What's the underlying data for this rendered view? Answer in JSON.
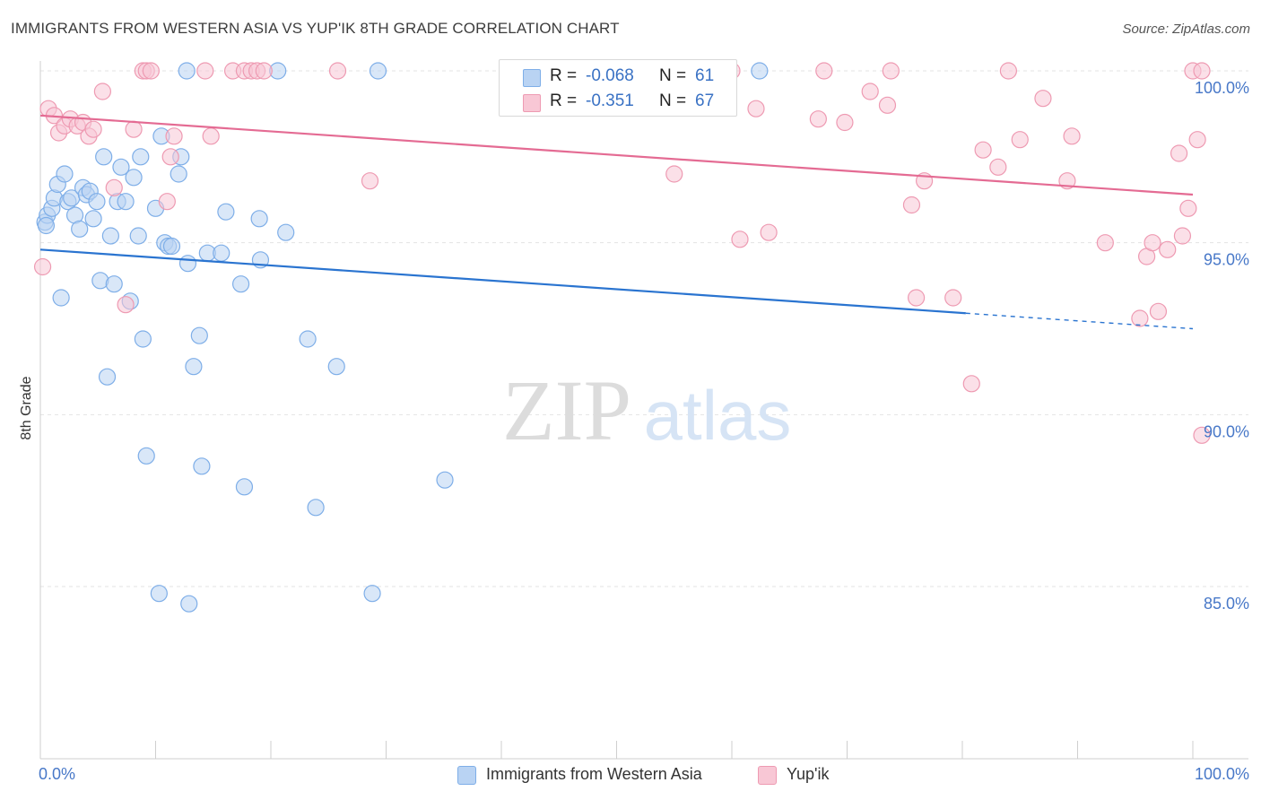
{
  "header": {
    "title": "IMMIGRANTS FROM WESTERN ASIA VS YUP'IK 8TH GRADE CORRELATION CHART",
    "source": "Source: ZipAtlas.com"
  },
  "watermark": {
    "zip": "ZIP",
    "atlas": "atlas"
  },
  "legend_top": {
    "rows": [
      {
        "r_label": "R =",
        "r_value": "-0.068",
        "n_label": "N =",
        "n_value": "61"
      },
      {
        "r_label": "R =",
        "r_value": "-0.351",
        "n_label": "N =",
        "n_value": "67"
      }
    ]
  },
  "legend_bottom": {
    "items": [
      {
        "label": "Immigrants from Western Asia"
      },
      {
        "label": "Yup'ik"
      }
    ]
  },
  "colors": {
    "blue_fill": "#b9d3f3",
    "blue_stroke": "#7eaee8",
    "blue_line": "#2a74d0",
    "pink_fill": "#f8c7d5",
    "pink_stroke": "#ee9ab2",
    "pink_line": "#e46b93",
    "axis_text": "#4878c8",
    "grid": "#e3e3e3"
  },
  "chart_data": {
    "type": "scatter",
    "title": "IMMIGRANTS FROM WESTERN ASIA VS YUP'IK 8TH GRADE CORRELATION CHART",
    "xlabel": "",
    "ylabel": "8th Grade",
    "xlim": [
      0,
      100
    ],
    "ylim": [
      80.5,
      100.8
    ],
    "x_tick_labels": [
      "0.0%",
      "100.0%"
    ],
    "y_ticks": [
      {
        "value": 100,
        "label": "100.0%"
      },
      {
        "value": 95,
        "label": "95.0%"
      },
      {
        "value": 90,
        "label": "90.0%"
      },
      {
        "value": 85,
        "label": "85.0%"
      }
    ],
    "series": [
      {
        "name": "Immigrants from Western Asia",
        "color": "blue",
        "trend": {
          "x0": 0,
          "y0": 94.8,
          "x1": 80.3,
          "y1": 92.95,
          "dash_to": 100,
          "dash_y": 92.5
        },
        "points": [
          [
            0.4,
            95.6
          ],
          [
            0.6,
            95.8
          ],
          [
            1.0,
            96.0
          ],
          [
            1.2,
            96.3
          ],
          [
            1.5,
            96.7
          ],
          [
            1.8,
            93.4
          ],
          [
            2.1,
            97.0
          ],
          [
            2.4,
            96.2
          ],
          [
            2.7,
            96.3
          ],
          [
            3.0,
            95.8
          ],
          [
            3.4,
            95.4
          ],
          [
            3.7,
            96.6
          ],
          [
            4.0,
            96.4
          ],
          [
            4.3,
            96.5
          ],
          [
            4.6,
            95.7
          ],
          [
            4.9,
            96.2
          ],
          [
            5.2,
            93.9
          ],
          [
            5.5,
            97.5
          ],
          [
            5.8,
            91.1
          ],
          [
            6.1,
            95.2
          ],
          [
            6.4,
            93.8
          ],
          [
            6.7,
            96.2
          ],
          [
            7.0,
            97.2
          ],
          [
            7.4,
            96.2
          ],
          [
            7.8,
            93.3
          ],
          [
            8.1,
            96.9
          ],
          [
            8.5,
            95.2
          ],
          [
            8.7,
            97.5
          ],
          [
            8.9,
            92.2
          ],
          [
            9.2,
            88.8
          ],
          [
            10.0,
            96.0
          ],
          [
            10.3,
            84.8
          ],
          [
            10.5,
            98.1
          ],
          [
            10.8,
            95.0
          ],
          [
            11.1,
            94.9
          ],
          [
            11.4,
            94.9
          ],
          [
            12.0,
            97.0
          ],
          [
            12.2,
            97.5
          ],
          [
            12.8,
            94.4
          ],
          [
            13.3,
            91.4
          ],
          [
            13.8,
            92.3
          ],
          [
            14.0,
            88.5
          ],
          [
            14.5,
            94.7
          ],
          [
            12.9,
            84.5
          ],
          [
            15.7,
            94.7
          ],
          [
            16.1,
            95.9
          ],
          [
            17.4,
            93.8
          ],
          [
            17.7,
            87.9
          ],
          [
            19.0,
            95.7
          ],
          [
            19.1,
            94.5
          ],
          [
            21.3,
            95.3
          ],
          [
            23.2,
            92.2
          ],
          [
            23.9,
            87.3
          ],
          [
            25.7,
            91.4
          ],
          [
            28.8,
            84.8
          ],
          [
            35.1,
            88.1
          ],
          [
            12.7,
            100.0
          ],
          [
            20.6,
            100.0
          ],
          [
            29.3,
            100.0
          ],
          [
            62.4,
            100.0
          ],
          [
            0.5,
            95.5
          ]
        ]
      },
      {
        "name": "Yup'ik",
        "color": "pink",
        "trend": {
          "x0": 0,
          "y0": 98.7,
          "x1": 100,
          "y1": 96.4
        },
        "points": [
          [
            0.2,
            94.3
          ],
          [
            0.7,
            98.9
          ],
          [
            1.2,
            98.7
          ],
          [
            1.6,
            98.2
          ],
          [
            2.1,
            98.4
          ],
          [
            2.6,
            98.6
          ],
          [
            3.2,
            98.4
          ],
          [
            3.7,
            98.5
          ],
          [
            4.2,
            98.1
          ],
          [
            4.6,
            98.3
          ],
          [
            5.4,
            99.4
          ],
          [
            6.4,
            96.6
          ],
          [
            7.4,
            93.2
          ],
          [
            8.1,
            98.3
          ],
          [
            8.9,
            100.0
          ],
          [
            9.2,
            100.0
          ],
          [
            9.6,
            100.0
          ],
          [
            11.0,
            96.2
          ],
          [
            11.3,
            97.5
          ],
          [
            11.6,
            98.1
          ],
          [
            14.3,
            100.0
          ],
          [
            14.8,
            98.1
          ],
          [
            16.7,
            100.0
          ],
          [
            17.7,
            100.0
          ],
          [
            18.3,
            100.0
          ],
          [
            18.8,
            100.0
          ],
          [
            19.4,
            100.0
          ],
          [
            25.8,
            100.0
          ],
          [
            28.6,
            96.8
          ],
          [
            41.1,
            100.0
          ],
          [
            49.1,
            100.0
          ],
          [
            55.0,
            97.0
          ],
          [
            60.0,
            100.0
          ],
          [
            60.7,
            95.1
          ],
          [
            62.1,
            98.9
          ],
          [
            63.2,
            95.3
          ],
          [
            67.5,
            98.6
          ],
          [
            68.0,
            100.0
          ],
          [
            69.8,
            98.5
          ],
          [
            72.0,
            99.4
          ],
          [
            73.8,
            100.0
          ],
          [
            73.5,
            99.0
          ],
          [
            75.6,
            96.1
          ],
          [
            76.0,
            93.4
          ],
          [
            76.7,
            96.8
          ],
          [
            79.2,
            93.4
          ],
          [
            80.8,
            90.9
          ],
          [
            81.8,
            97.7
          ],
          [
            83.1,
            97.2
          ],
          [
            84.0,
            100.0
          ],
          [
            85.0,
            98.0
          ],
          [
            87.0,
            99.2
          ],
          [
            89.1,
            96.8
          ],
          [
            89.5,
            98.1
          ],
          [
            92.4,
            95.0
          ],
          [
            95.4,
            92.8
          ],
          [
            96.0,
            94.6
          ],
          [
            96.5,
            95.0
          ],
          [
            97.0,
            93.0
          ],
          [
            97.8,
            94.8
          ],
          [
            98.8,
            97.6
          ],
          [
            99.1,
            95.2
          ],
          [
            99.6,
            96.0
          ],
          [
            100.0,
            100.0
          ],
          [
            100.4,
            98.0
          ],
          [
            101.2,
            100.0
          ],
          [
            101.8,
            89.4
          ]
        ]
      }
    ]
  }
}
